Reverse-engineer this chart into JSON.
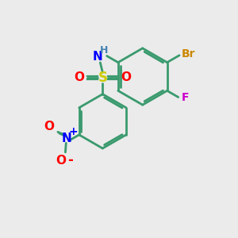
{
  "bg_color": "#ebebeb",
  "bond_color": "#3a9a6e",
  "bond_width": 2.0,
  "atom_colors": {
    "C": "#000000",
    "N": "#0000ff",
    "H": "#4682b4",
    "S": "#cccc00",
    "O": "#ff0000",
    "F": "#cc00cc",
    "Br": "#cc8800",
    "plus": "#0000ff",
    "minus": "#ff0000"
  },
  "font_size": 10,
  "fig_size": [
    3.0,
    3.0
  ],
  "dpi": 100
}
